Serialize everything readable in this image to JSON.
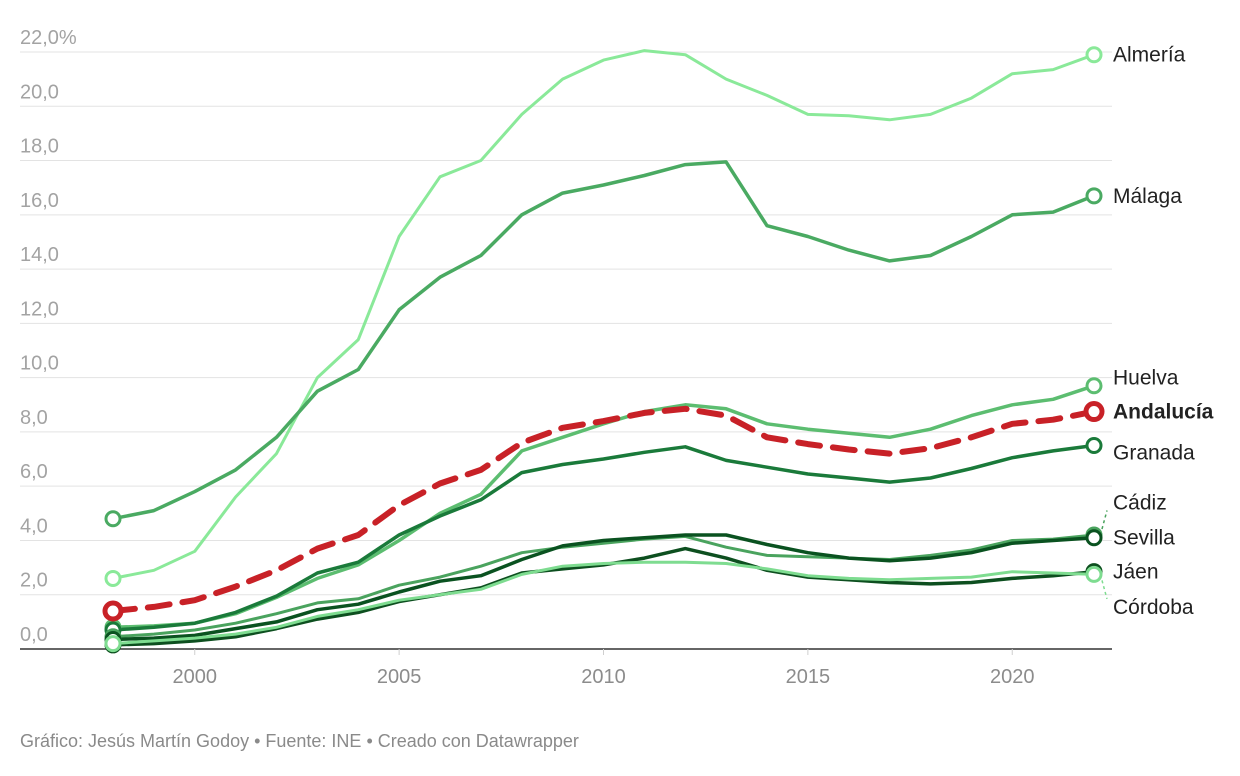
{
  "chart_data": {
    "type": "line",
    "y_unit_suffix": "%",
    "x_ticks": [
      2000,
      2005,
      2010,
      2015,
      2020
    ],
    "y_ticks": [
      {
        "value": 0,
        "label": "0,0"
      },
      {
        "value": 2,
        "label": "2,0"
      },
      {
        "value": 4,
        "label": "4,0"
      },
      {
        "value": 6,
        "label": "6,0"
      },
      {
        "value": 8,
        "label": "8,0"
      },
      {
        "value": 10,
        "label": "10,0"
      },
      {
        "value": 12,
        "label": "12,0"
      },
      {
        "value": 14,
        "label": "14,0"
      },
      {
        "value": 16,
        "label": "16,0"
      },
      {
        "value": 18,
        "label": "18,0"
      },
      {
        "value": 20,
        "label": "20,0"
      },
      {
        "value": 22,
        "label": "22,0%"
      }
    ],
    "xlim": [
      1997.8,
      2022.4
    ],
    "ylim": [
      0,
      22
    ],
    "grid": true,
    "x": [
      1998,
      1999,
      2000,
      2001,
      2002,
      2003,
      2004,
      2005,
      2006,
      2007,
      2008,
      2009,
      2010,
      2011,
      2012,
      2013,
      2014,
      2015,
      2016,
      2017,
      2018,
      2019,
      2020,
      2021,
      2022
    ],
    "series": [
      {
        "name": "Almería",
        "color": "#8ae999",
        "width": 3,
        "dashed": false,
        "values": [
          2.6,
          2.9,
          3.6,
          5.6,
          7.2,
          10.0,
          11.4,
          15.2,
          17.4,
          18.0,
          19.7,
          21.0,
          21.7,
          22.05,
          21.9,
          21.0,
          20.4,
          19.7,
          19.65,
          19.5,
          19.7,
          20.3,
          21.2,
          21.35,
          21.9
        ]
      },
      {
        "name": "Málaga",
        "color": "#4aaa62",
        "width": 3.5,
        "dashed": false,
        "values": [
          4.8,
          5.1,
          5.8,
          6.6,
          7.8,
          9.5,
          10.3,
          12.5,
          13.7,
          14.5,
          16.0,
          16.8,
          17.1,
          17.45,
          17.85,
          17.95,
          15.6,
          15.2,
          14.7,
          14.3,
          14.5,
          15.2,
          16.0,
          16.1,
          16.7
        ]
      },
      {
        "name": "Huelva",
        "color": "#5cbd70",
        "width": 3.5,
        "dashed": false,
        "values": [
          0.8,
          0.85,
          0.95,
          1.3,
          1.9,
          2.6,
          3.1,
          4.0,
          5.0,
          5.7,
          7.3,
          7.8,
          8.3,
          8.75,
          9.0,
          8.85,
          8.3,
          8.1,
          7.95,
          7.8,
          8.1,
          8.6,
          9.0,
          9.2,
          9.7
        ]
      },
      {
        "name": "Granada",
        "color": "#1a7a3a",
        "width": 3.5,
        "dashed": false,
        "values": [
          0.7,
          0.8,
          0.95,
          1.35,
          1.95,
          2.8,
          3.2,
          4.2,
          4.9,
          5.5,
          6.5,
          6.8,
          7.0,
          7.25,
          7.45,
          6.95,
          6.7,
          6.45,
          6.3,
          6.15,
          6.3,
          6.65,
          7.05,
          7.3,
          7.5
        ]
      },
      {
        "name": "Cádiz",
        "color": "#4aa35e",
        "width": 3,
        "dashed": false,
        "values": [
          0.45,
          0.55,
          0.7,
          0.95,
          1.3,
          1.7,
          1.85,
          2.35,
          2.65,
          3.05,
          3.55,
          3.75,
          3.9,
          4.05,
          4.15,
          3.75,
          3.45,
          3.4,
          3.35,
          3.3,
          3.45,
          3.65,
          4.0,
          4.05,
          4.2
        ]
      },
      {
        "name": "Sevilla",
        "color": "#0a5220",
        "width": 3.5,
        "dashed": false,
        "values": [
          0.35,
          0.4,
          0.5,
          0.75,
          1.0,
          1.45,
          1.65,
          2.1,
          2.5,
          2.7,
          3.3,
          3.8,
          4.0,
          4.1,
          4.2,
          4.2,
          3.85,
          3.55,
          3.35,
          3.25,
          3.35,
          3.55,
          3.9,
          4.0,
          4.1
        ]
      },
      {
        "name": "Jáen",
        "color": "#0d4f1f",
        "width": 3.5,
        "dashed": false,
        "values": [
          0.15,
          0.2,
          0.3,
          0.45,
          0.75,
          1.1,
          1.35,
          1.75,
          2.0,
          2.25,
          2.8,
          2.95,
          3.1,
          3.35,
          3.7,
          3.35,
          2.9,
          2.65,
          2.55,
          2.45,
          2.4,
          2.45,
          2.6,
          2.7,
          2.85
        ]
      },
      {
        "name": "Córdoba",
        "color": "#7edc90",
        "width": 3,
        "dashed": false,
        "values": [
          0.2,
          0.3,
          0.4,
          0.55,
          0.8,
          1.2,
          1.45,
          1.8,
          2.0,
          2.2,
          2.75,
          3.05,
          3.15,
          3.2,
          3.2,
          3.15,
          2.95,
          2.7,
          2.6,
          2.55,
          2.6,
          2.65,
          2.85,
          2.8,
          2.75
        ]
      },
      {
        "name": "Andalucía",
        "color": "#c82127",
        "width": 6,
        "dashed": true,
        "values": [
          1.4,
          1.55,
          1.8,
          2.3,
          2.9,
          3.7,
          4.2,
          5.3,
          6.1,
          6.6,
          7.6,
          8.15,
          8.4,
          8.7,
          8.85,
          8.6,
          7.8,
          7.55,
          7.35,
          7.2,
          7.4,
          7.8,
          8.3,
          8.45,
          8.75
        ]
      }
    ],
    "labels": [
      {
        "series": "Almería",
        "text": "Almería",
        "bold": false,
        "value": 21.9
      },
      {
        "series": "Málaga",
        "text": "Málaga",
        "bold": false,
        "value": 16.7
      },
      {
        "series": "Huelva",
        "text": "Huelva",
        "bold": false,
        "value": 10.0
      },
      {
        "series": "Andalucía",
        "text": "Andalucía",
        "bold": true,
        "value": 8.75
      },
      {
        "series": "Granada",
        "text": "Granada",
        "bold": false,
        "value": 7.25
      },
      {
        "series": "Cádiz",
        "text": "Cádiz",
        "bold": false,
        "value": 5.4,
        "leader": true
      },
      {
        "series": "Sevilla",
        "text": "Sevilla",
        "bold": false,
        "value": 4.1
      },
      {
        "series": "Jáen",
        "text": "Jáen",
        "bold": false,
        "value": 2.85
      },
      {
        "series": "Córdoba",
        "text": "Córdoba",
        "bold": false,
        "value": 1.55,
        "leader": true
      }
    ]
  },
  "footer": {
    "text": "Gráfico: Jesús Martín Godoy • Fuente: INE • Creado con Datawrapper"
  },
  "colors": {
    "grid": "#e3e3e3",
    "axis": "#333333",
    "tick_text": "#a3a3a3"
  }
}
